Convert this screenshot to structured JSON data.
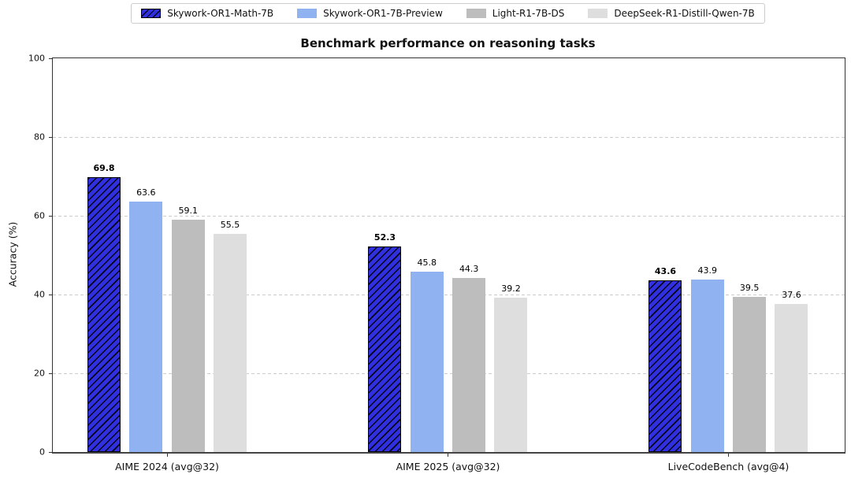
{
  "figure": {
    "title": "Benchmark performance on reasoning tasks",
    "ylabel": "Accuracy (%)"
  },
  "chart_data": {
    "type": "bar",
    "title": "Benchmark performance on reasoning tasks",
    "xlabel": "",
    "ylabel": "Accuracy (%)",
    "ylim": [
      0,
      100
    ],
    "yticks": [
      0,
      20,
      40,
      60,
      80,
      100
    ],
    "grid": "horizontal dashed gridlines at y ticks",
    "legend_position": "top center, horizontal, boxed",
    "categories": [
      "AIME 2024 (avg@32)",
      "AIME 2025 (avg@32)",
      "LiveCodeBench (avg@4)"
    ],
    "series": [
      {
        "name": "Skywork-OR1-Math-7B",
        "color": "#3030e0",
        "hatch": "//",
        "edgecolor": "#000000",
        "value_labels_bold": true,
        "values": [
          69.8,
          52.3,
          43.6
        ]
      },
      {
        "name": "Skywork-OR1-7B-Preview",
        "color": "#90b2f0",
        "hatch": null,
        "edgecolor": null,
        "value_labels_bold": false,
        "values": [
          63.6,
          45.8,
          43.9
        ]
      },
      {
        "name": "Light-R1-7B-DS",
        "color": "#bdbdbd",
        "hatch": null,
        "edgecolor": null,
        "value_labels_bold": false,
        "values": [
          59.1,
          44.3,
          39.5
        ]
      },
      {
        "name": "DeepSeek-R1-Distill-Qwen-7B",
        "color": "#dedede",
        "hatch": null,
        "edgecolor": null,
        "value_labels_bold": false,
        "values": [
          55.5,
          39.2,
          37.6
        ]
      }
    ]
  }
}
